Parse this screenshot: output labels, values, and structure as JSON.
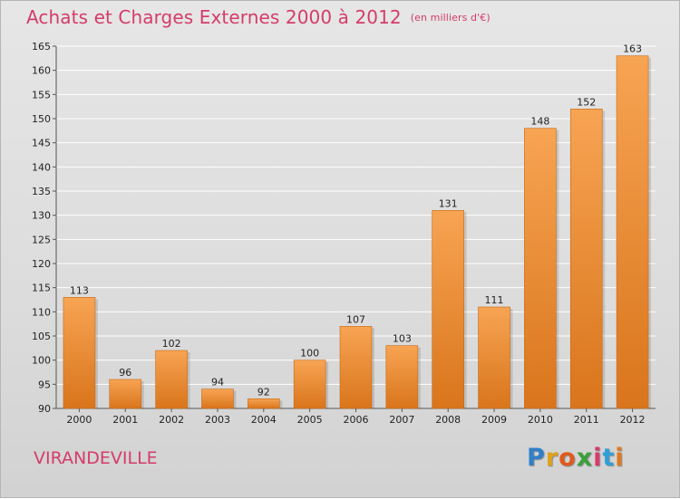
{
  "header": {
    "title": "Achats et Charges Externes 2000 à 2012",
    "unit": "(en milliers d'€)"
  },
  "footer": {
    "commune": "VIRANDEVILLE",
    "brand": "Proxiti"
  },
  "chart_data": {
    "type": "bar",
    "title": "Achats et Charges Externes 2000 à 2012",
    "subtitle": "(en milliers d'€)",
    "categories": [
      "2000",
      "2001",
      "2002",
      "2003",
      "2004",
      "2005",
      "2006",
      "2007",
      "2008",
      "2009",
      "2010",
      "2011",
      "2012"
    ],
    "values": [
      113,
      96,
      102,
      94,
      92,
      100,
      107,
      103,
      131,
      111,
      148,
      152,
      163
    ],
    "ylim": [
      90,
      165
    ],
    "yticks": [
      90,
      95,
      100,
      105,
      110,
      115,
      120,
      125,
      130,
      135,
      140,
      145,
      150,
      155,
      160,
      165
    ],
    "grid": true,
    "bar_color_top": "#f7a453",
    "bar_color_bottom": "#d9751c",
    "grid_color": "#ffffff"
  }
}
